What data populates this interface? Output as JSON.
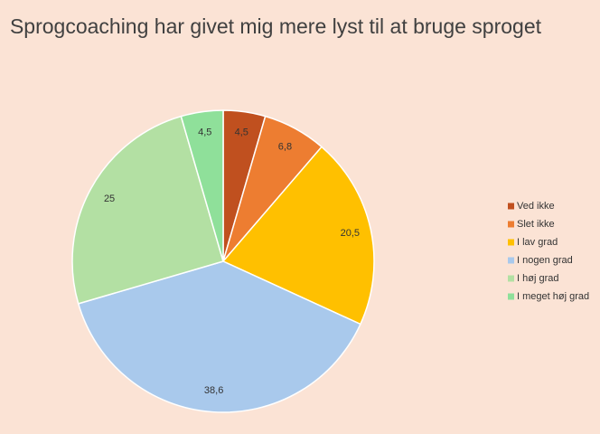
{
  "chart_data": {
    "type": "pie",
    "title": "Sprogcoaching har givet mig mere lyst til at bruge sproget",
    "categories": [
      "Ved ikke",
      "Slet ikke",
      "I lav grad",
      "I nogen grad",
      "I høj grad",
      "I meget høj grad"
    ],
    "values": [
      4.5,
      6.8,
      20.5,
      38.6,
      25,
      4.5
    ],
    "value_labels": [
      "4,5",
      "6,8",
      "20,5",
      "38,6",
      "25",
      "4,5"
    ],
    "colors": [
      "#c0501f",
      "#ed7d31",
      "#ffc000",
      "#a9c9ec",
      "#b3e0a3",
      "#8fe09a"
    ],
    "legend": "right"
  }
}
